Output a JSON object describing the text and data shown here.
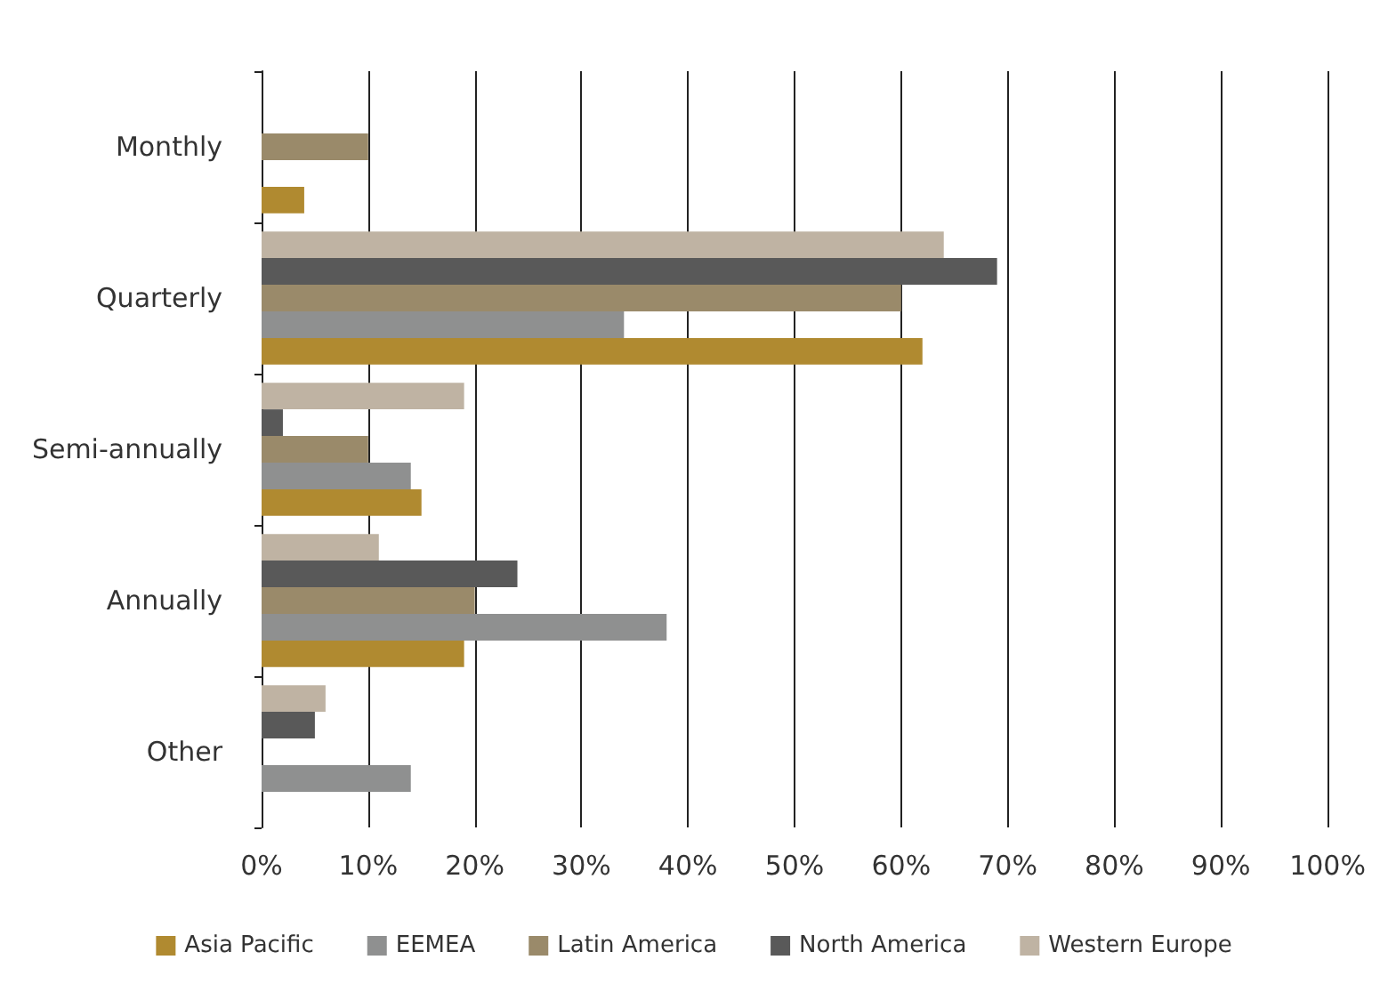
{
  "chart_data": {
    "type": "bar",
    "orientation": "horizontal",
    "categories": [
      "Monthly",
      "Quarterly",
      "Semi-annually",
      "Annually",
      "Other"
    ],
    "series": [
      {
        "name": "Asia Pacific",
        "color": "#b08a30",
        "values": [
          4,
          62,
          15,
          19,
          0
        ]
      },
      {
        "name": "EEMEA",
        "color": "#8f9090",
        "values": [
          0,
          34,
          14,
          38,
          14
        ]
      },
      {
        "name": "Latin America",
        "color": "#9a8a6a",
        "values": [
          10,
          60,
          10,
          20,
          0
        ]
      },
      {
        "name": "North America",
        "color": "#595959",
        "values": [
          0,
          69,
          2,
          24,
          5
        ]
      },
      {
        "name": "Western Europe",
        "color": "#bfb3a3",
        "values": [
          0,
          64,
          19,
          11,
          6
        ]
      }
    ],
    "xlim": [
      0,
      100
    ],
    "xticks": [
      {
        "value": 0,
        "label": "0%"
      },
      {
        "value": 10,
        "label": "10%"
      },
      {
        "value": 20,
        "label": "20%"
      },
      {
        "value": 30,
        "label": "30%"
      },
      {
        "value": 40,
        "label": "40%"
      },
      {
        "value": 50,
        "label": "50%"
      },
      {
        "value": 60,
        "label": "60%"
      },
      {
        "value": 70,
        "label": "70%"
      },
      {
        "value": 80,
        "label": "80%"
      },
      {
        "value": 90,
        "label": "90%"
      },
      {
        "value": 100,
        "label": "100%"
      }
    ],
    "grid": "x",
    "legend": "bottom"
  }
}
